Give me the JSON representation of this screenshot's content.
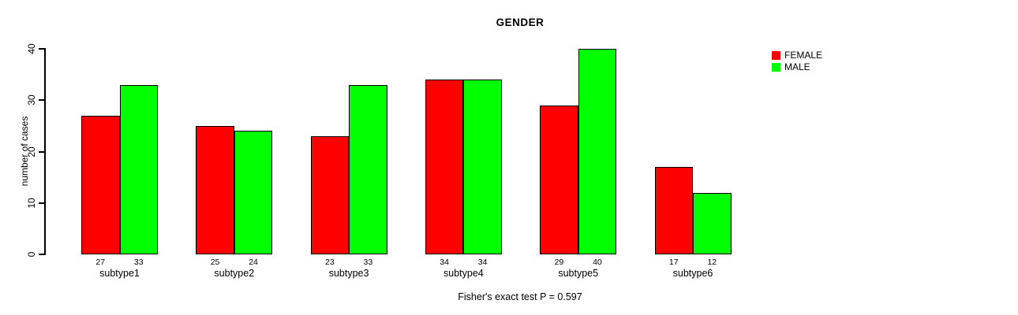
{
  "chart_data": {
    "type": "bar",
    "title": "GENDER",
    "ylabel": "number of cases",
    "caption": "Fisher's exact test P = 0.597",
    "categories": [
      "subtype1",
      "subtype2",
      "subtype3",
      "subtype4",
      "subtype5",
      "subtype6"
    ],
    "series": [
      {
        "name": "FEMALE",
        "color": "#ff0000",
        "values": [
          27,
          25,
          23,
          34,
          29,
          17
        ]
      },
      {
        "name": "MALE",
        "color": "#00ff00",
        "values": [
          33,
          24,
          33,
          34,
          40,
          12
        ]
      }
    ],
    "ylim": [
      0,
      40
    ],
    "yticks": [
      0,
      10,
      20,
      30,
      40
    ],
    "value_labels_shown": true,
    "bar_border_color": "#000000",
    "axis_color": "#000000",
    "background_color": "#ffffff",
    "legend_position": "top-right",
    "grid": false
  }
}
